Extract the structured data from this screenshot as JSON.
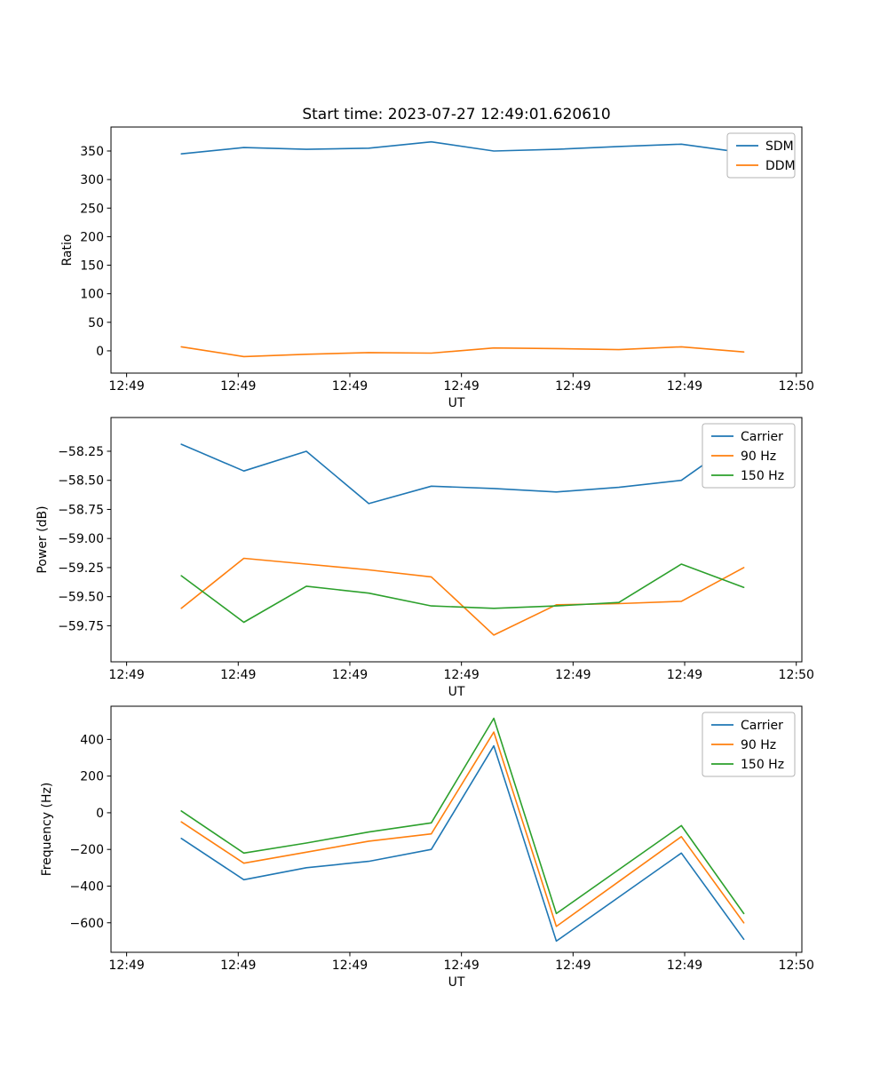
{
  "figure": {
    "title": "Start time: 2023-07-27 12:49:01.620610"
  },
  "colors": {
    "blue": "#1f77b4",
    "orange": "#ff7f0e",
    "green": "#2ca02c"
  },
  "chart_data": [
    {
      "type": "line",
      "title": "Start time: 2023-07-27 12:49:01.620610",
      "xlabel": "UT",
      "ylabel": "Ratio",
      "grid": false,
      "legend_position": "upper right",
      "xlim": [
        -1.4,
        60.5
      ],
      "ylim": [
        -39,
        392
      ],
      "xticks": [
        0,
        10,
        20,
        30,
        40,
        50,
        60
      ],
      "xtick_labels": [
        "12:49",
        "12:49",
        "12:49",
        "12:49",
        "12:49",
        "12:49",
        "12:50"
      ],
      "yticks": [
        0,
        50,
        100,
        150,
        200,
        250,
        300,
        350
      ],
      "ytick_labels": [
        "0",
        "50",
        "100",
        "150",
        "200",
        "250",
        "300",
        "350"
      ],
      "x_seconds": [
        4.9,
        10.5,
        16.1,
        21.7,
        27.3,
        32.9,
        38.5,
        44.1,
        49.7,
        55.3
      ],
      "series": [
        {
          "name": "SDM",
          "color": "#1f77b4",
          "values": [
            345,
            356,
            353,
            355,
            366,
            350,
            353,
            358,
            362,
            347
          ]
        },
        {
          "name": "DDM",
          "color": "#ff7f0e",
          "values": [
            7,
            -10,
            -6,
            -3,
            -4,
            5,
            4,
            2,
            7,
            -2
          ]
        }
      ]
    },
    {
      "type": "line",
      "title": "",
      "xlabel": "UT",
      "ylabel": "Power (dB)",
      "grid": false,
      "legend_position": "upper right",
      "xlim": [
        -1.4,
        60.5
      ],
      "ylim": [
        -60.06,
        -57.96
      ],
      "xticks": [
        0,
        10,
        20,
        30,
        40,
        50,
        60
      ],
      "xtick_labels": [
        "12:49",
        "12:49",
        "12:49",
        "12:49",
        "12:49",
        "12:49",
        "12:50"
      ],
      "yticks": [
        -59.75,
        -59.5,
        -59.25,
        -59.0,
        -58.75,
        -58.5,
        -58.25
      ],
      "ytick_labels": [
        "−59.75",
        "−59.50",
        "−59.25",
        "−59.00",
        "−58.75",
        "−58.50",
        "−58.25"
      ],
      "x_seconds": [
        4.9,
        10.5,
        16.1,
        21.7,
        27.3,
        32.9,
        38.5,
        44.1,
        49.7,
        55.3
      ],
      "series": [
        {
          "name": "Carrier",
          "color": "#1f77b4",
          "values": [
            -58.19,
            -58.42,
            -58.25,
            -58.7,
            -58.55,
            -58.57,
            -58.6,
            -58.56,
            -58.5,
            -58.12
          ]
        },
        {
          "name": "90 Hz",
          "color": "#ff7f0e",
          "values": [
            -59.6,
            -59.17,
            -59.22,
            -59.27,
            -59.33,
            -59.83,
            -59.57,
            -59.56,
            -59.54,
            -59.25
          ]
        },
        {
          "name": "150 Hz",
          "color": "#2ca02c",
          "values": [
            -59.32,
            -59.72,
            -59.41,
            -59.47,
            -59.58,
            -59.6,
            -59.58,
            -59.55,
            -59.22,
            -59.42
          ]
        }
      ]
    },
    {
      "type": "line",
      "title": "",
      "xlabel": "UT",
      "ylabel": "Frequency (Hz)",
      "grid": false,
      "legend_position": "upper right",
      "xlim": [
        -1.4,
        60.5
      ],
      "ylim": [
        -761,
        581
      ],
      "xticks": [
        0,
        10,
        20,
        30,
        40,
        50,
        60
      ],
      "xtick_labels": [
        "12:49",
        "12:49",
        "12:49",
        "12:49",
        "12:49",
        "12:49",
        "12:50"
      ],
      "yticks": [
        -600,
        -400,
        -200,
        0,
        200,
        400
      ],
      "ytick_labels": [
        "−600",
        "−400",
        "−200",
        "0",
        "200",
        "400"
      ],
      "x_seconds": [
        4.9,
        10.5,
        16.1,
        21.7,
        27.3,
        32.9,
        38.5,
        44.1,
        49.7,
        55.3
      ],
      "series": [
        {
          "name": "Carrier",
          "color": "#1f77b4",
          "values": [
            -140,
            -365,
            -300,
            -265,
            -200,
            365,
            -700,
            -460,
            -220,
            -690
          ]
        },
        {
          "name": "90 Hz",
          "color": "#ff7f0e",
          "values": [
            -50,
            -275,
            -215,
            -155,
            -115,
            440,
            -620,
            -375,
            -130,
            -600
          ]
        },
        {
          "name": "150 Hz",
          "color": "#2ca02c",
          "values": [
            10,
            -220,
            -165,
            -105,
            -55,
            515,
            -550,
            -310,
            -70,
            -550
          ]
        }
      ]
    }
  ]
}
